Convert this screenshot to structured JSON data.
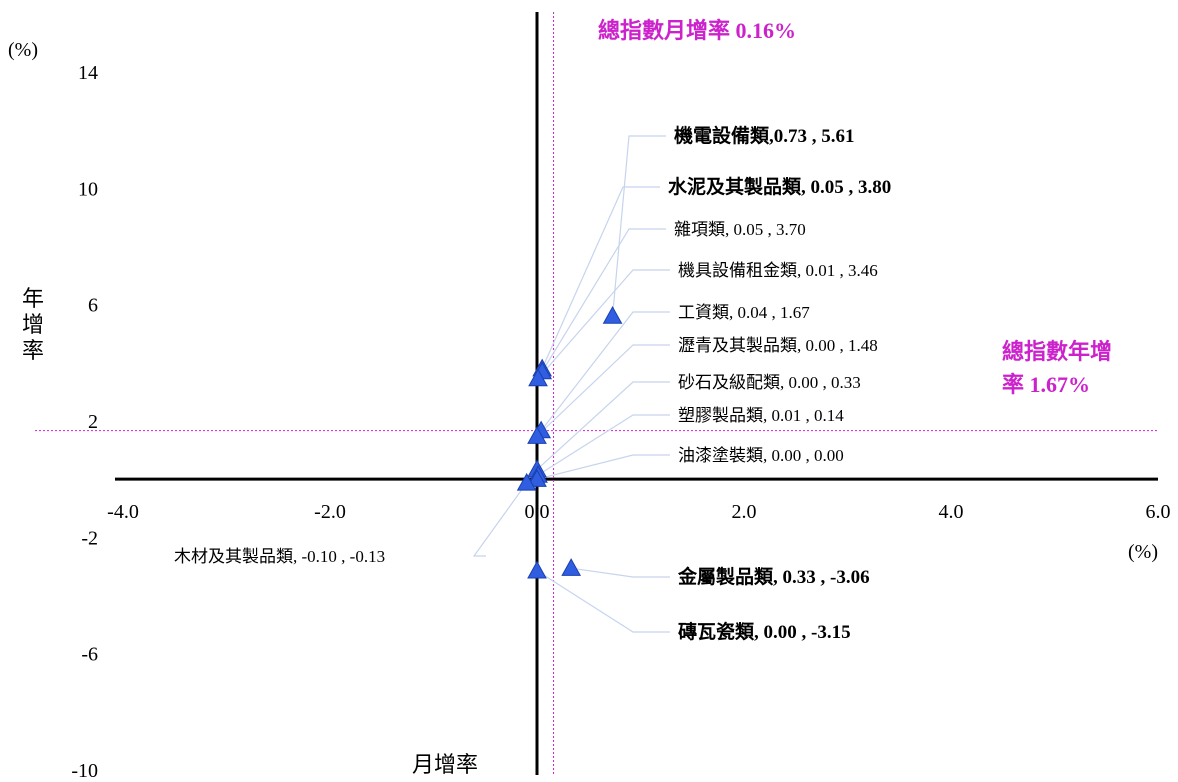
{
  "chart_data": {
    "type": "scatter",
    "xlabel": "月增率",
    "ylabel": "年增率",
    "x_unit": "(%)",
    "y_unit": "(%)",
    "xlim": [
      -4.0,
      6.0
    ],
    "ylim": [
      -10,
      14
    ],
    "x_ticks": [
      "-4.0",
      "-2.0",
      "0.0",
      "2.0",
      "4.0",
      "6.0"
    ],
    "y_ticks": [
      "14",
      "10",
      "6",
      "2",
      "-2",
      "-6",
      "-10"
    ],
    "reference_lines": {
      "vertical": {
        "value": 0.16,
        "label": "總指數月增率 0.16%"
      },
      "horizontal": {
        "value": 1.67,
        "label_line1": "總指數年增",
        "label_line2": "率 1.67%"
      }
    },
    "points": [
      {
        "name": "機電設備類",
        "x": 0.73,
        "y": 5.61,
        "label": "機電設備類,0.73 , 5.61",
        "color": "#ff0000",
        "emphasis": true
      },
      {
        "name": "水泥及其製品類",
        "x": 0.05,
        "y": 3.8,
        "label": "水泥及其製品類, 0.05 , 3.80",
        "color": "#3399ee",
        "emphasis": true
      },
      {
        "name": "雜項類",
        "x": 0.05,
        "y": 3.7,
        "label": "雜項類, 0.05 , 3.70",
        "color": "#000000",
        "emphasis": false
      },
      {
        "name": "機具設備租金類",
        "x": 0.01,
        "y": 3.46,
        "label": "機具設備租金類, 0.01 , 3.46",
        "color": "#000000",
        "emphasis": false
      },
      {
        "name": "工資類",
        "x": 0.04,
        "y": 1.67,
        "label": "工資類, 0.04 , 1.67",
        "color": "#000000",
        "emphasis": false
      },
      {
        "name": "瀝青及其製品類",
        "x": 0.0,
        "y": 1.48,
        "label": "瀝青及其製品類, 0.00 , 1.48",
        "color": "#000000",
        "emphasis": false
      },
      {
        "name": "砂石及級配類",
        "x": 0.0,
        "y": 0.33,
        "label": "砂石及級配類, 0.00 , 0.33",
        "color": "#000000",
        "emphasis": false
      },
      {
        "name": "塑膠製品類",
        "x": 0.01,
        "y": 0.14,
        "label": "塑膠製品類, 0.01 , 0.14",
        "color": "#000000",
        "emphasis": false
      },
      {
        "name": "油漆塗裝類",
        "x": 0.0,
        "y": 0.0,
        "label": "油漆塗裝類, 0.00 , 0.00",
        "color": "#000000",
        "emphasis": false
      },
      {
        "name": "木材及其製品類",
        "x": -0.1,
        "y": -0.13,
        "label": "木材及其製品類, -0.10 , -0.13",
        "color": "#000000",
        "emphasis": false
      },
      {
        "name": "金屬製品類",
        "x": 0.33,
        "y": -3.06,
        "label": "金屬製品類, 0.33 , -3.06",
        "color": "#ff0000",
        "emphasis": true
      },
      {
        "name": "磚瓦瓷類",
        "x": 0.0,
        "y": -3.15,
        "label": "磚瓦瓷類, 0.00 , -3.15",
        "color": "#009944",
        "emphasis": true
      }
    ],
    "marker": "triangle",
    "marker_color": "#2f5fe0",
    "leader_line_color": "#c6d4ee",
    "reference_color": "#cc22cc"
  }
}
